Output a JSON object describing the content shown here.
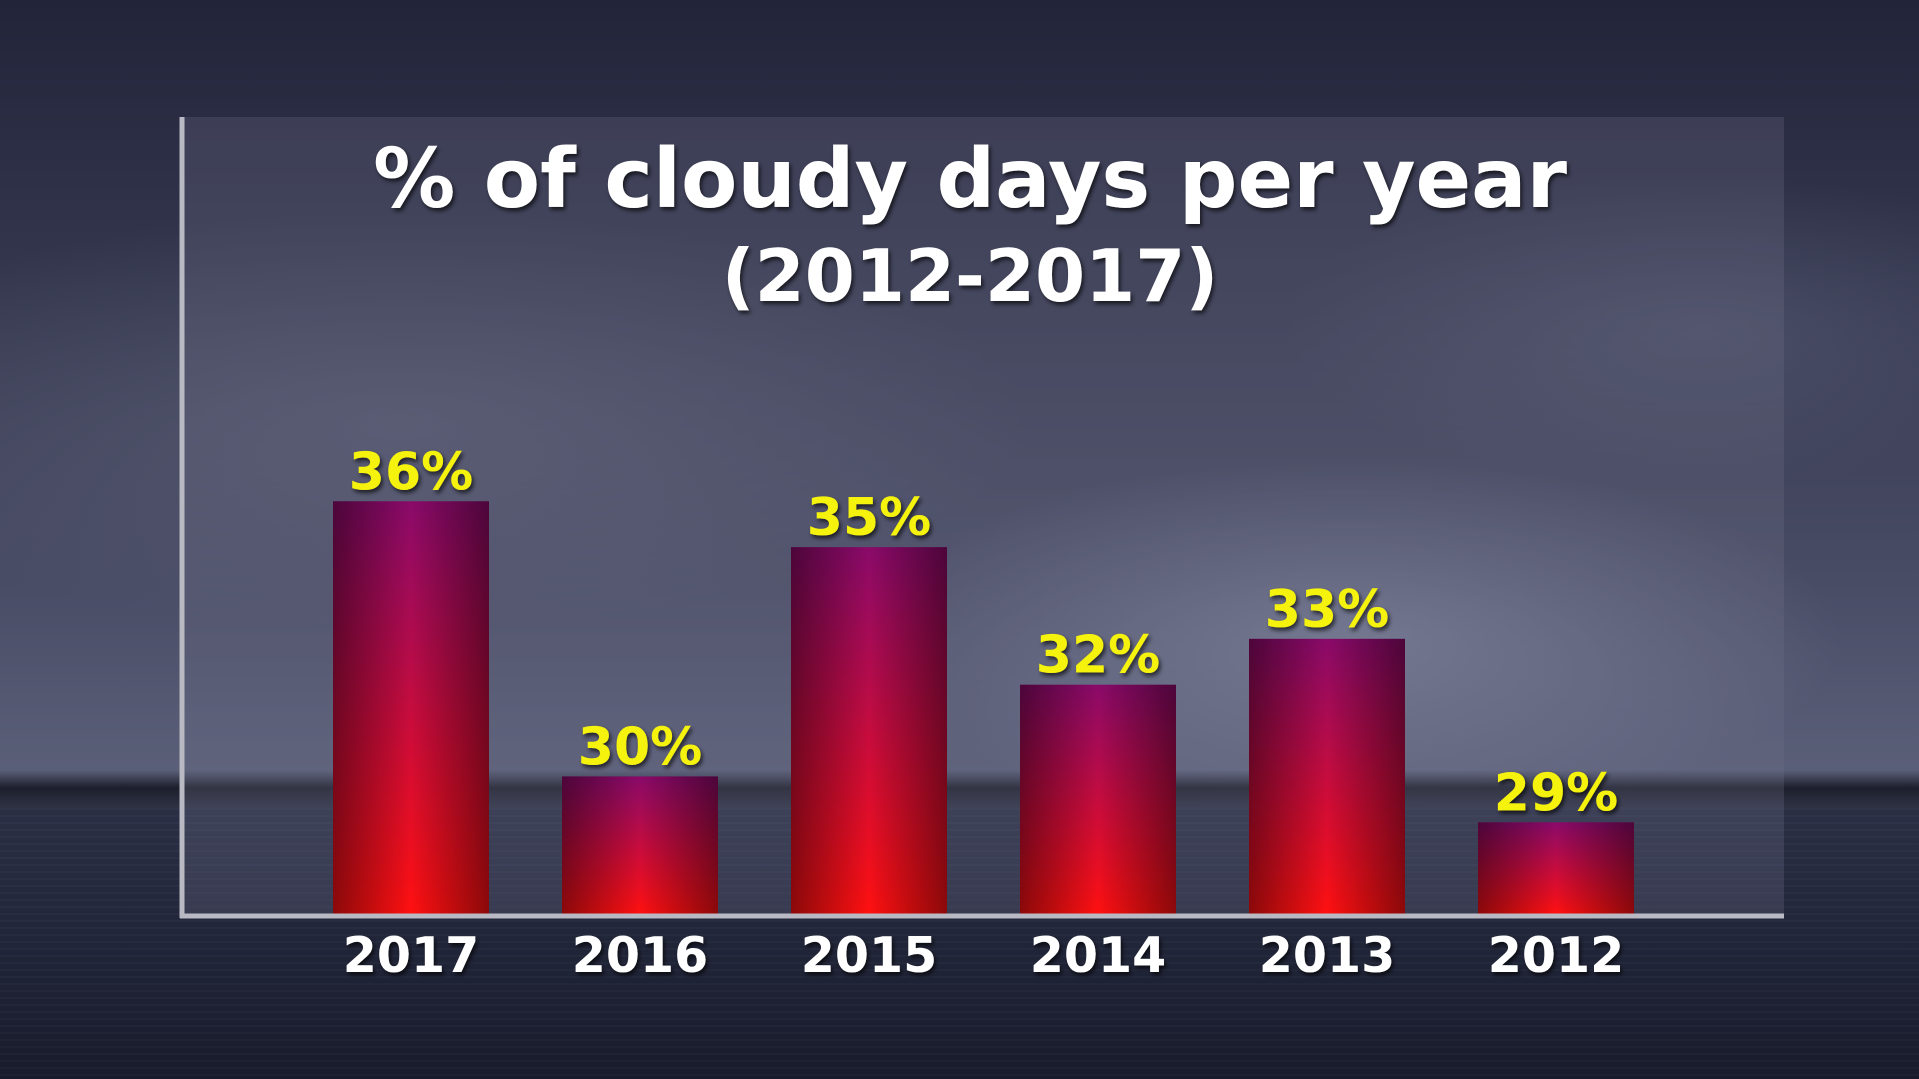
{
  "colors": {
    "bar_top": "#8a0a6a",
    "bar_mid": "#cc0c3a",
    "bar_bottom": "#ff1010",
    "value_label": "#f5f20c",
    "text": "#ffffff",
    "axis": "#b9b9c4"
  },
  "chart_data": {
    "type": "bar",
    "title": "% of cloudy days per year",
    "subtitle": "(2012-2017)",
    "categories": [
      "2017",
      "2016",
      "2015",
      "2014",
      "2013",
      "2012"
    ],
    "values": [
      36,
      30,
      35,
      32,
      33,
      29
    ],
    "value_labels": [
      "36%",
      "30%",
      "35%",
      "32%",
      "33%",
      "29%"
    ],
    "xlabel": "",
    "ylabel": "",
    "ylim": [
      27,
      36.9
    ],
    "grid": false,
    "legend": "none"
  }
}
